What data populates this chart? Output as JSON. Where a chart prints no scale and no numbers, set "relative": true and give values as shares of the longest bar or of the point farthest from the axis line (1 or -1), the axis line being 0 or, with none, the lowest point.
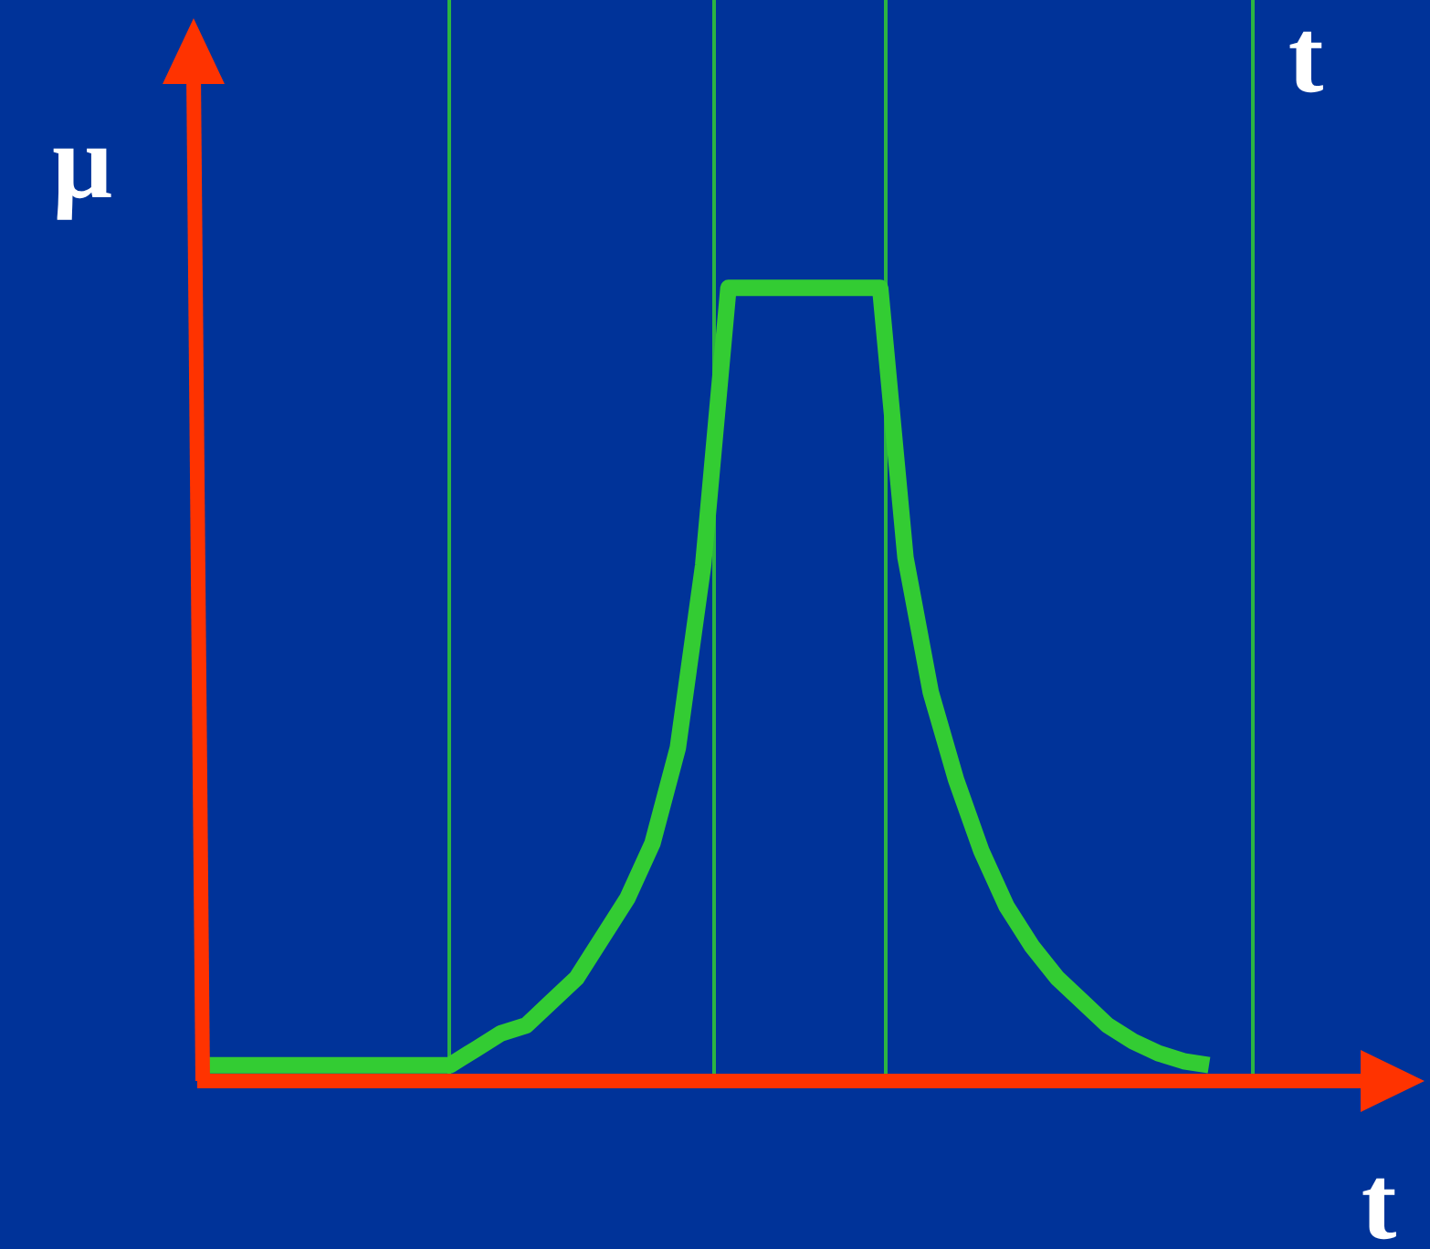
{
  "chart_data": {
    "type": "line",
    "relative": true,
    "xlabel": "t",
    "ylabel": "μ",
    "annotations": [
      "t"
    ],
    "legend": false,
    "marker": "none",
    "line_style": "solid",
    "categories": [
      null,
      null,
      null,
      null,
      null,
      null,
      null,
      null,
      null,
      null,
      null,
      null,
      null,
      null,
      null,
      null,
      null,
      null,
      null,
      null,
      null,
      null,
      null,
      null,
      null,
      null,
      null,
      null,
      null,
      null,
      null,
      null,
      null,
      null,
      null,
      null,
      null,
      null,
      null,
      null,
      null
    ],
    "series": [
      {
        "color": "#33cc33",
        "values": [
          0.02,
          0.02,
          0.02,
          0.02,
          0.02,
          0.02,
          0.02,
          0.02,
          0.02,
          0.02,
          0.02,
          0.04,
          0.06,
          0.07,
          0.1,
          0.13,
          0.18,
          0.23,
          0.3,
          0.42,
          0.65,
          1,
          1,
          1,
          1,
          1,
          1,
          1,
          0.66,
          0.49,
          0.38,
          0.29,
          0.22,
          0.17,
          0.13,
          0.1,
          0.07,
          0.05,
          0.035,
          0.025,
          0.02
        ]
      }
    ]
  }
}
